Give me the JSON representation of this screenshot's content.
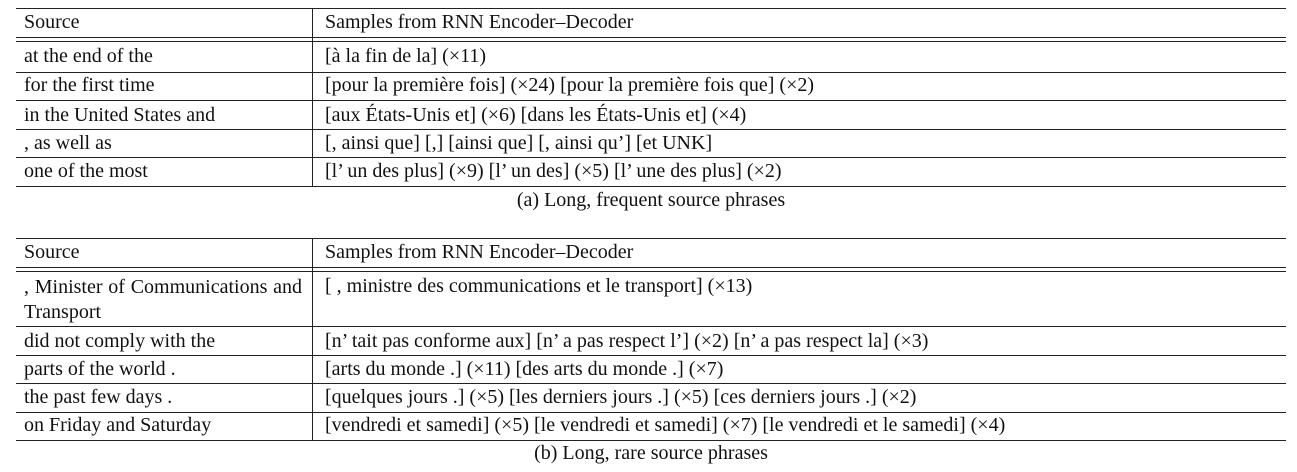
{
  "tables": [
    {
      "header": {
        "source": "Source",
        "samples": "Samples from RNN Encoder–Decoder"
      },
      "rows": [
        {
          "source": "at the end of the",
          "samples": "[à la fin de la] (×11)"
        },
        {
          "source": "for the first time",
          "samples": "[pour la première fois] (×24) [pour la première fois que] (×2)"
        },
        {
          "source": "in the United States and",
          "samples": "[aux États-Unis et] (×6) [dans les États-Unis et] (×4)"
        },
        {
          "source": ", as well as",
          "samples": "[, ainsi que] [,] [ainsi que] [, ainsi qu’] [et UNK]"
        },
        {
          "source": "one of the most",
          "samples": "[l’ un des plus] (×9) [l’ un des] (×5) [l’ une des plus] (×2)"
        }
      ],
      "caption": "(a) Long, frequent source phrases"
    },
    {
      "header": {
        "source": "Source",
        "samples": "Samples from RNN Encoder–Decoder"
      },
      "rows": [
        {
          "source": ", Minister of Communications and Transport",
          "samples": "[ , ministre des communications et le transport] (×13)"
        },
        {
          "source": "did not comply with the",
          "samples": "[n’ tait pas conforme aux] [n’ a pas respect l’] (×2) [n’ a pas respect la] (×3)"
        },
        {
          "source": "parts of the world .",
          "samples": "[arts du monde .] (×11) [des arts du monde .] (×7)"
        },
        {
          "source": "the past few days .",
          "samples": "[quelques jours .] (×5) [les derniers jours .] (×5) [ces derniers jours .] (×2)"
        },
        {
          "source": "on Friday and Saturday",
          "samples": "[vendredi et samedi] (×5) [le vendredi et samedi] (×7) [le vendredi et le samedi] (×4)"
        }
      ],
      "caption": "(b) Long, rare source phrases"
    }
  ]
}
